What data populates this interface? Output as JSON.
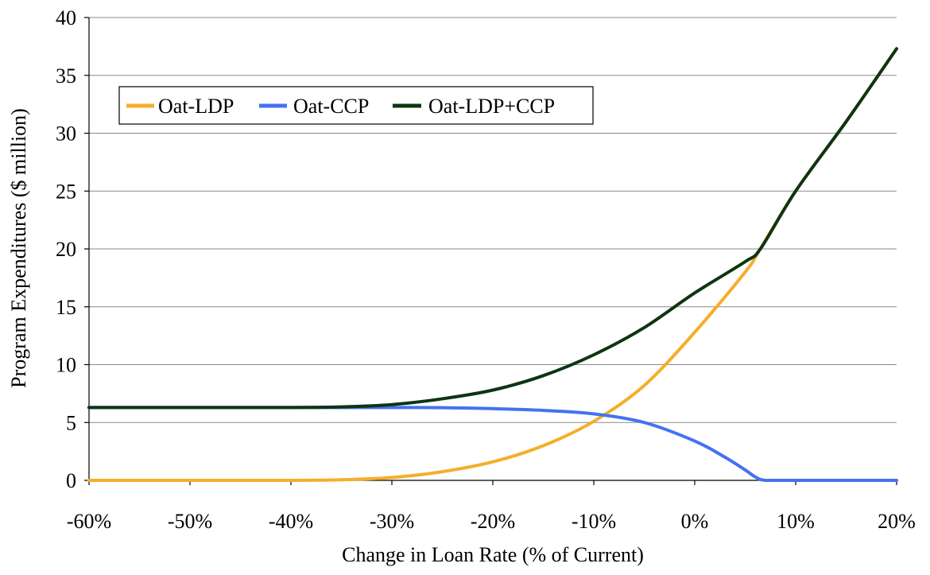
{
  "chart_data": {
    "type": "line",
    "title": "",
    "xlabel": "Change in Loan Rate (% of Current)",
    "ylabel": "Program Expenditures ($ million)",
    "xlim": [
      -60,
      20
    ],
    "ylim": [
      0,
      40
    ],
    "x_ticks": [
      -60,
      -50,
      -40,
      -30,
      -20,
      -10,
      0,
      10,
      20
    ],
    "x_tick_labels": [
      "-60%",
      "-50%",
      "-40%",
      "-30%",
      "-20%",
      "-10%",
      "0%",
      "10%",
      "20%"
    ],
    "y_ticks": [
      0,
      5,
      10,
      15,
      20,
      25,
      30,
      35,
      40
    ],
    "y_tick_labels": [
      "0",
      "5",
      "10",
      "15",
      "20",
      "25",
      "30",
      "35",
      "40"
    ],
    "grid": "horizontal",
    "legend_position": "top-left",
    "series": [
      {
        "name": "Oat-LDP",
        "color": "#f5ae2a",
        "x": [
          -60,
          -50,
          -40,
          -35,
          -30,
          -25,
          -20,
          -15,
          -10,
          -5,
          0,
          5,
          6.5,
          10,
          15,
          20
        ],
        "y": [
          0,
          0,
          0,
          0.05,
          0.25,
          0.75,
          1.6,
          3.0,
          5.1,
          8.2,
          12.8,
          18.0,
          20.0,
          25.0,
          31.0,
          37.3
        ]
      },
      {
        "name": "Oat-CCP",
        "color": "#4472f0",
        "x": [
          -60,
          -50,
          -40,
          -35,
          -30,
          -25,
          -20,
          -15,
          -10,
          -5,
          0,
          3,
          5,
          6,
          7,
          10,
          15,
          20
        ],
        "y": [
          6.3,
          6.3,
          6.3,
          6.3,
          6.3,
          6.28,
          6.2,
          6.05,
          5.75,
          5.0,
          3.4,
          2.0,
          0.9,
          0.3,
          0,
          0,
          0,
          0
        ]
      },
      {
        "name": "Oat-LDP+CCP",
        "color": "#0d3512",
        "x": [
          -60,
          -50,
          -40,
          -35,
          -30,
          -25,
          -20,
          -15,
          -10,
          -5,
          0,
          5,
          6.5,
          10,
          15,
          20
        ],
        "y": [
          6.3,
          6.3,
          6.3,
          6.35,
          6.55,
          7.05,
          7.8,
          9.05,
          10.85,
          13.2,
          16.2,
          18.9,
          20.0,
          25.0,
          31.0,
          37.3
        ]
      }
    ]
  }
}
